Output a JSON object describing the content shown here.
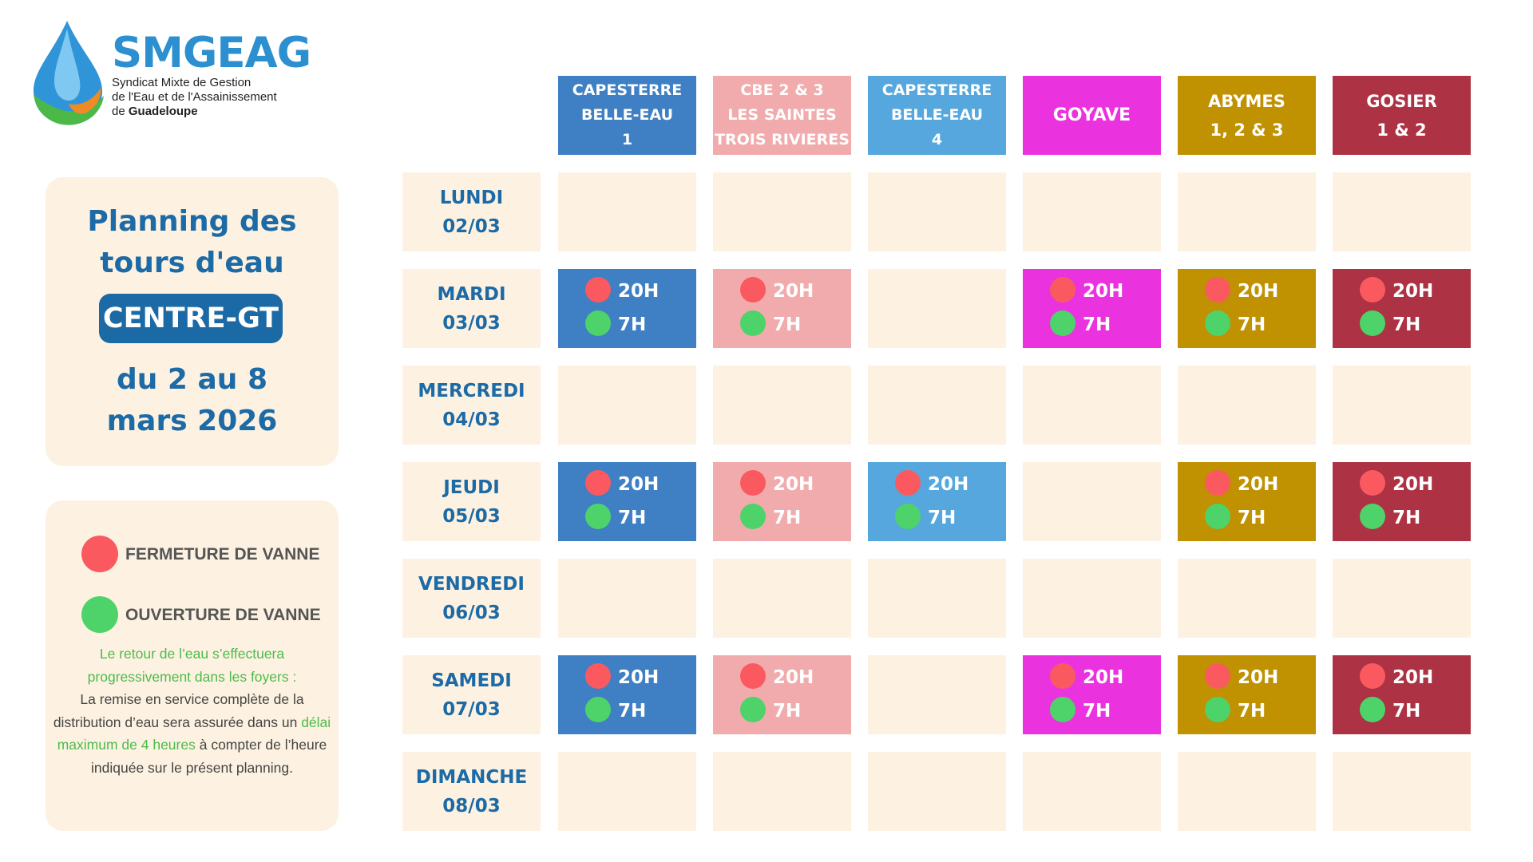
{
  "logo": {
    "name": "SMGEAG",
    "line1": "Syndicat Mixte de Gestion",
    "line2": "de l'Eau et de l'Assainissement",
    "line3_prefix": "de ",
    "line3_bold": "Guadeloupe"
  },
  "title": {
    "line1": "Planning des",
    "line2": "tours d'eau",
    "badge": "CENTRE-GT",
    "date_line1": "du 2 au 8",
    "date_line2": "mars 2026"
  },
  "legend": {
    "close_label": "FERMETURE DE VANNE",
    "open_label": "OUVERTURE DE VANNE",
    "close_color": "#fa5a5f",
    "open_color": "#4dd36a",
    "notice_green_1": "Le retour de l’eau s’effectuera progressivement dans les foyers :",
    "notice_text_1": "La remise en service complète de la distribution d’eau sera assurée dans un",
    "notice_green_2": "délai maximum de 4 heures",
    "notice_text_2": "à compter de l’heure indiquée sur le présent planning."
  },
  "columns": [
    {
      "lines": [
        "CAPESTERRE",
        "BELLE-EAU",
        "1"
      ],
      "color": "#3f7fc4"
    },
    {
      "lines": [
        "CBE 2 & 3",
        "LES SAINTES",
        "TROIS RIVIERES"
      ],
      "color": "#f1abac"
    },
    {
      "lines": [
        "CAPESTERRE",
        "BELLE-EAU",
        "4"
      ],
      "color": "#55a7de"
    },
    {
      "lines": [
        "GOYAVE"
      ],
      "color": "#ea33de"
    },
    {
      "lines": [
        "ABYMES",
        "1, 2 & 3"
      ],
      "color": "#c09100"
    },
    {
      "lines": [
        "GOSIER",
        "1 & 2"
      ],
      "color": "#ad3243"
    }
  ],
  "days": [
    {
      "name": "LUNDI",
      "date": "02/03",
      "active": [
        false,
        false,
        false,
        false,
        false,
        false
      ]
    },
    {
      "name": "MARDI",
      "date": "03/03",
      "active": [
        true,
        true,
        false,
        true,
        true,
        true
      ]
    },
    {
      "name": "MERCREDI",
      "date": "04/03",
      "active": [
        false,
        false,
        false,
        false,
        false,
        false
      ]
    },
    {
      "name": "JEUDI",
      "date": "05/03",
      "active": [
        true,
        true,
        true,
        false,
        true,
        true
      ]
    },
    {
      "name": "VENDREDI",
      "date": "06/03",
      "active": [
        false,
        false,
        false,
        false,
        false,
        false
      ]
    },
    {
      "name": "SAMEDI",
      "date": "07/03",
      "active": [
        true,
        true,
        false,
        true,
        true,
        true
      ]
    },
    {
      "name": "DIMANCHE",
      "date": "08/03",
      "active": [
        false,
        false,
        false,
        false,
        false,
        false
      ]
    }
  ],
  "times": {
    "close": "20H",
    "open": "7H"
  }
}
